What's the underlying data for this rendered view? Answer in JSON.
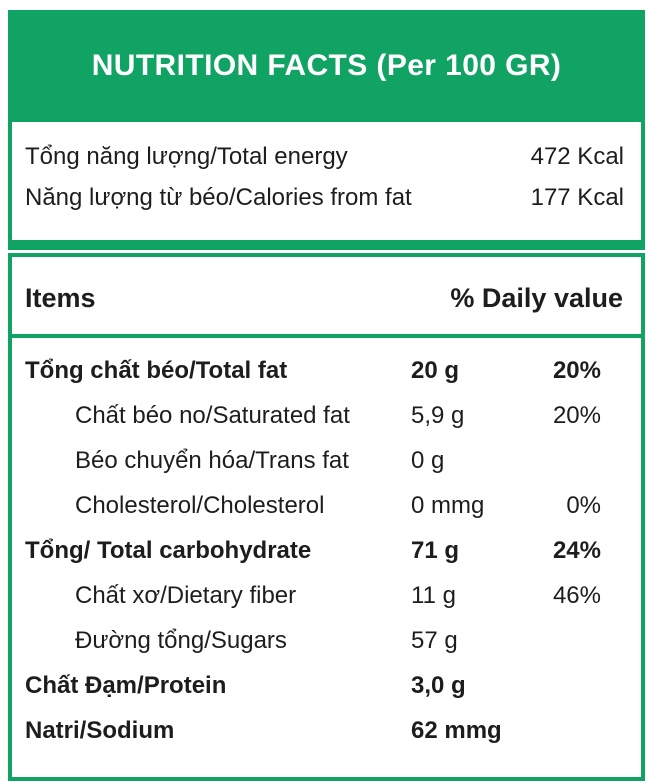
{
  "colors": {
    "accent_green": "#10a363",
    "title_text": "#ffffff",
    "body_text": "#1d1d1d"
  },
  "header": {
    "title": "NUTRITION FACTS (Per 100 GR)"
  },
  "energy": {
    "rows": [
      {
        "label": "Tổng năng lượng/Total energy",
        "value": "472 Kcal"
      },
      {
        "label": "Năng lượng từ béo/Calories from fat",
        "value": "177 Kcal"
      }
    ]
  },
  "table": {
    "columns": {
      "items": "Items",
      "daily_value": "% Daily value"
    },
    "rows": [
      {
        "label": "Tổng chất béo/Total fat",
        "amount": "20 g",
        "percent": "20%",
        "bold": true,
        "indent": false
      },
      {
        "label": "Chất béo no/Saturated fat",
        "amount": "5,9 g",
        "percent": "20%",
        "bold": false,
        "indent": true
      },
      {
        "label": "Béo chuyển hóa/Trans fat",
        "amount": "0 g",
        "percent": "",
        "bold": false,
        "indent": true
      },
      {
        "label": "Cholesterol/Cholesterol",
        "amount": "0 mmg",
        "percent": "0%",
        "bold": false,
        "indent": true
      },
      {
        "label": "Tổng/ Total carbohydrate",
        "amount": "71 g",
        "percent": "24%",
        "bold": true,
        "indent": false
      },
      {
        "label": "Chất xơ/Dietary fiber",
        "amount": "11 g",
        "percent": "46%",
        "bold": false,
        "indent": true
      },
      {
        "label": "Đường tổng/Sugars",
        "amount": "57 g",
        "percent": "",
        "bold": false,
        "indent": true
      },
      {
        "label": "Chất Đạm/Protein",
        "amount": "3,0 g",
        "percent": "",
        "bold": true,
        "indent": false
      },
      {
        "label": "Natri/Sodium",
        "amount": "62 mmg",
        "percent": "",
        "bold": true,
        "indent": false
      }
    ]
  }
}
